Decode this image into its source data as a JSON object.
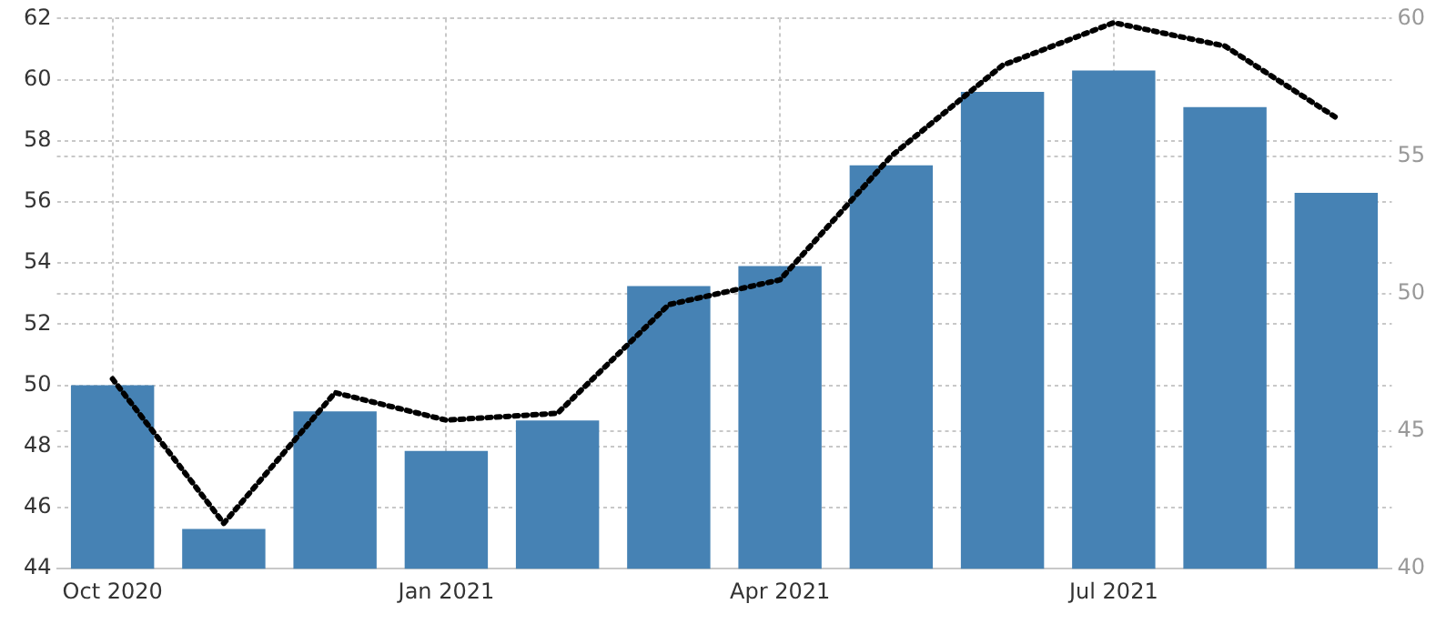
{
  "chart_data": {
    "type": "bar",
    "categories": [
      "Oct 2020",
      null,
      null,
      "Jan 2021",
      null,
      null,
      "Apr 2021",
      null,
      null,
      "Jul 2021",
      null,
      null
    ],
    "series": [
      {
        "type": "bar",
        "color": "#4682b4",
        "values": [
          50.0,
          45.3,
          49.15,
          47.85,
          48.85,
          53.25,
          53.9,
          57.2,
          59.6,
          60.3,
          59.1,
          56.3
        ]
      },
      {
        "type": "line",
        "axis": "y2",
        "color": "#000000",
        "line_style": "dotted",
        "marker": "none",
        "values": [
          46.9,
          41.65,
          46.4,
          45.4,
          45.65,
          49.6,
          50.5,
          55.0,
          58.3,
          59.85,
          59.0,
          56.4
        ]
      }
    ],
    "ylim": [
      44,
      62
    ],
    "yticks": [
      44,
      46,
      48,
      50,
      52,
      54,
      56,
      58,
      60,
      62
    ],
    "y2lim": [
      40,
      60
    ],
    "y2ticks": [
      40,
      45,
      50,
      55,
      60
    ],
    "grid": true,
    "legend": false
  }
}
